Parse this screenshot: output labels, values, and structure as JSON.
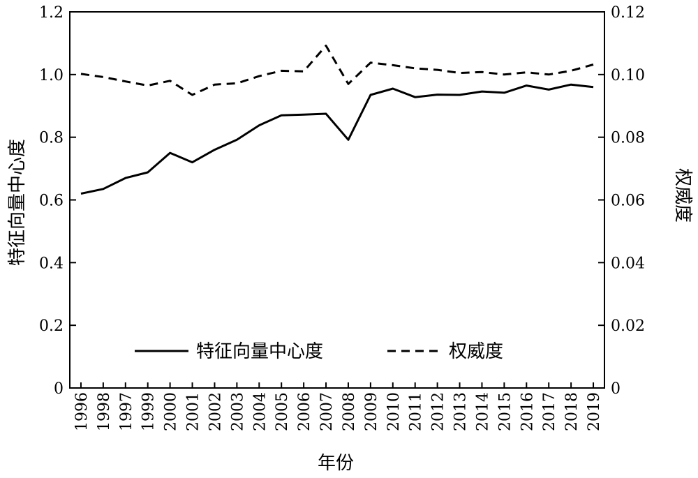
{
  "chart_data": {
    "type": "line",
    "xlabel": "年份",
    "ylabel_left": "特征向量中心度",
    "ylabel_right": "权威度",
    "categories": [
      "1996",
      "1998",
      "1997",
      "1999",
      "2000",
      "2001",
      "2002",
      "2003",
      "2004",
      "2005",
      "2006",
      "2007",
      "2008",
      "2009",
      "2010",
      "2011",
      "2012",
      "2013",
      "2014",
      "2015",
      "2016",
      "2017",
      "2018",
      "2019"
    ],
    "left_axis": {
      "ylim": [
        0,
        1.2
      ],
      "ticks": [
        0,
        0.2,
        0.4,
        0.6,
        0.8,
        1.0,
        1.2
      ],
      "tick_labels": [
        "0",
        "0.2",
        "0.4",
        "0.6",
        "0.8",
        "1.0",
        "1.2"
      ]
    },
    "right_axis": {
      "ylim": [
        0,
        0.12
      ],
      "ticks": [
        0,
        0.02,
        0.04,
        0.06,
        0.08,
        0.1,
        0.12
      ],
      "tick_labels": [
        "0",
        "0.02",
        "0.04",
        "0.06",
        "0.08",
        "0.10",
        "0.12"
      ]
    },
    "series": [
      {
        "name": "特征向量中心度",
        "axis": "left",
        "style": "solid",
        "color": "#000000",
        "values": [
          0.62,
          0.635,
          0.67,
          0.688,
          0.75,
          0.72,
          0.76,
          0.792,
          0.838,
          0.87,
          0.872,
          0.875,
          0.792,
          0.935,
          0.955,
          0.928,
          0.936,
          0.935,
          0.946,
          0.942,
          0.965,
          0.952,
          0.968,
          0.96
        ]
      },
      {
        "name": "权威度",
        "axis": "right",
        "style": "dashed",
        "color": "#000000",
        "values": [
          0.1002,
          0.0992,
          0.0978,
          0.0965,
          0.098,
          0.0935,
          0.0968,
          0.0972,
          0.0995,
          0.1012,
          0.101,
          0.1092,
          0.097,
          0.1038,
          0.103,
          0.102,
          0.1015,
          0.1005,
          0.1008,
          0.1,
          0.1007,
          0.1,
          0.1012,
          0.1032
        ]
      }
    ],
    "legend": {
      "placement": "bottom-center",
      "entries": [
        "特征向量中心度",
        "权威度"
      ]
    },
    "grid": false
  }
}
